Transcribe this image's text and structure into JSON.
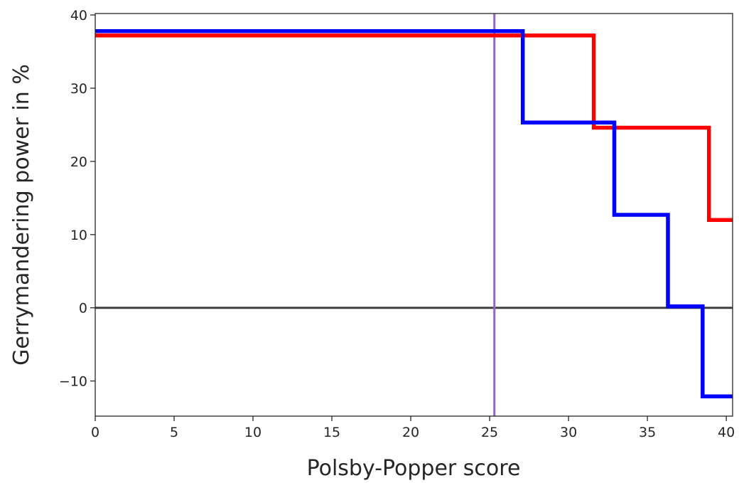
{
  "chart_data": {
    "type": "line",
    "title": "",
    "xlabel": "Polsby-Popper score",
    "ylabel": "Gerrymandering power in %",
    "xlim": [
      0,
      40.4
    ],
    "ylim": [
      -14.8,
      40.2
    ],
    "grid": false,
    "legend": "none",
    "x_ticks": [
      0,
      5,
      10,
      15,
      20,
      25,
      30,
      35,
      40
    ],
    "y_ticks": [
      -10,
      0,
      10,
      20,
      30,
      40
    ],
    "series": [
      {
        "color": "#ff0000",
        "step": "post",
        "x": [
          0,
          31.6,
          31.6,
          38.9,
          38.9,
          40.4
        ],
        "y": [
          37.2,
          37.2,
          24.6,
          24.6,
          12.0,
          12.0
        ]
      },
      {
        "color": "#0000ff",
        "step": "post",
        "x": [
          0,
          27.1,
          27.1,
          32.9,
          32.9,
          36.3,
          36.3,
          38.5,
          38.5,
          40.4
        ],
        "y": [
          37.8,
          37.8,
          25.3,
          25.3,
          12.7,
          12.7,
          0.2,
          0.2,
          -12.1,
          -12.1
        ]
      }
    ],
    "reference_lines": [
      {
        "orientation": "horizontal",
        "value": 0,
        "color": "#404040"
      },
      {
        "orientation": "vertical",
        "value": 25.3,
        "color": "#9467bd"
      }
    ]
  }
}
